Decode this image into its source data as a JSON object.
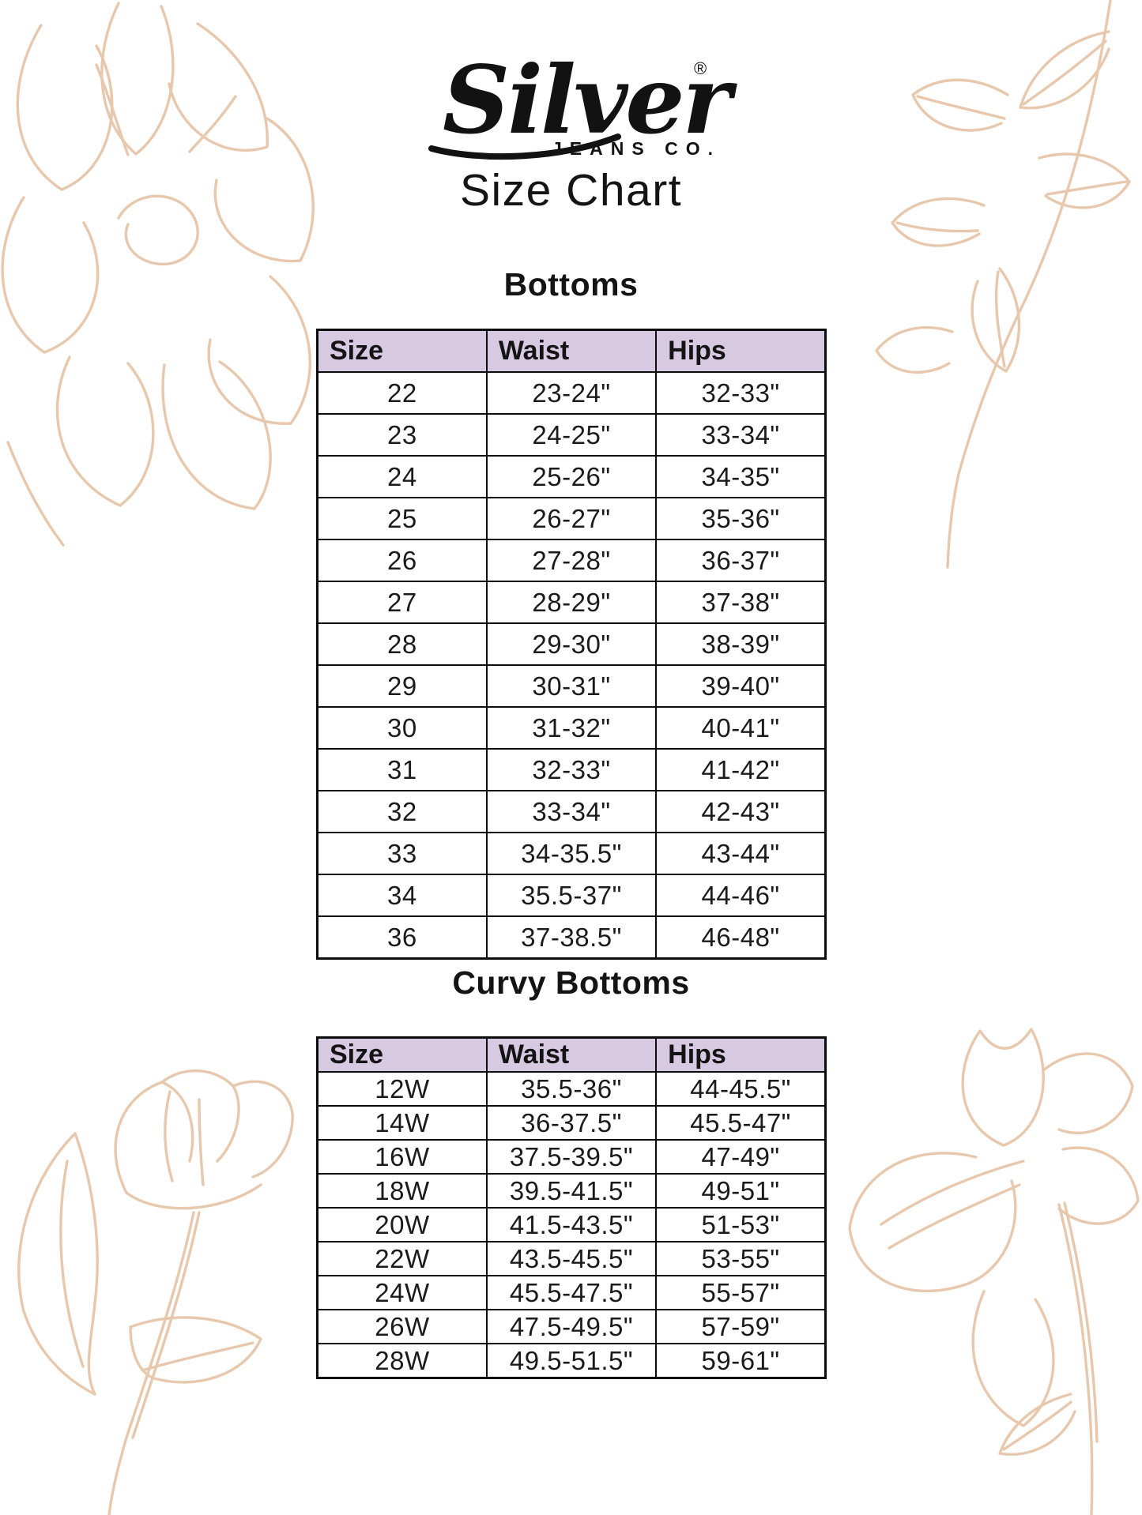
{
  "logo": {
    "brand_script": "Silver",
    "registered_mark": "®",
    "brand_sub": "JEANS CO.",
    "title": "Size Chart"
  },
  "tables": [
    {
      "heading": "Bottoms",
      "columns": [
        "Size",
        "Waist",
        "Hips"
      ],
      "rows": [
        [
          "22",
          "23-24\"",
          "32-33\""
        ],
        [
          "23",
          "24-25\"",
          "33-34\""
        ],
        [
          "24",
          "25-26\"",
          "34-35\""
        ],
        [
          "25",
          "26-27\"",
          "35-36\""
        ],
        [
          "26",
          "27-28\"",
          "36-37\""
        ],
        [
          "27",
          "28-29\"",
          "37-38\""
        ],
        [
          "28",
          "29-30\"",
          "38-39\""
        ],
        [
          "29",
          "30-31\"",
          "39-40\""
        ],
        [
          "30",
          "31-32\"",
          "40-41\""
        ],
        [
          "31",
          "32-33\"",
          "41-42\""
        ],
        [
          "32",
          "33-34\"",
          "42-43\""
        ],
        [
          "33",
          "34-35.5\"",
          "43-44\""
        ],
        [
          "34",
          "35.5-37\"",
          "44-46\""
        ],
        [
          "36",
          "37-38.5\"",
          "46-48\""
        ]
      ]
    },
    {
      "heading": "Curvy Bottoms",
      "columns": [
        "Size",
        "Waist",
        "Hips"
      ],
      "rows": [
        [
          "12W",
          "35.5-36\"",
          "44-45.5\""
        ],
        [
          "14W",
          "36-37.5\"",
          "45.5-47\""
        ],
        [
          "16W",
          "37.5-39.5\"",
          "47-49\""
        ],
        [
          "18W",
          "39.5-41.5\"",
          "49-51\""
        ],
        [
          "20W",
          "41.5-43.5\"",
          "51-53\""
        ],
        [
          "22W",
          "43.5-45.5\"",
          "53-55\""
        ],
        [
          "24W",
          "45.5-47.5\"",
          "55-57\""
        ],
        [
          "26W",
          "47.5-49.5\"",
          "57-59\""
        ],
        [
          "28W",
          "49.5-51.5\"",
          "59-61\""
        ]
      ]
    }
  ],
  "colors": {
    "header_bg": "#d8c9e2",
    "table_border": "#0c0c0c",
    "floral_line": "#e8c8ad",
    "text": "#111111"
  }
}
